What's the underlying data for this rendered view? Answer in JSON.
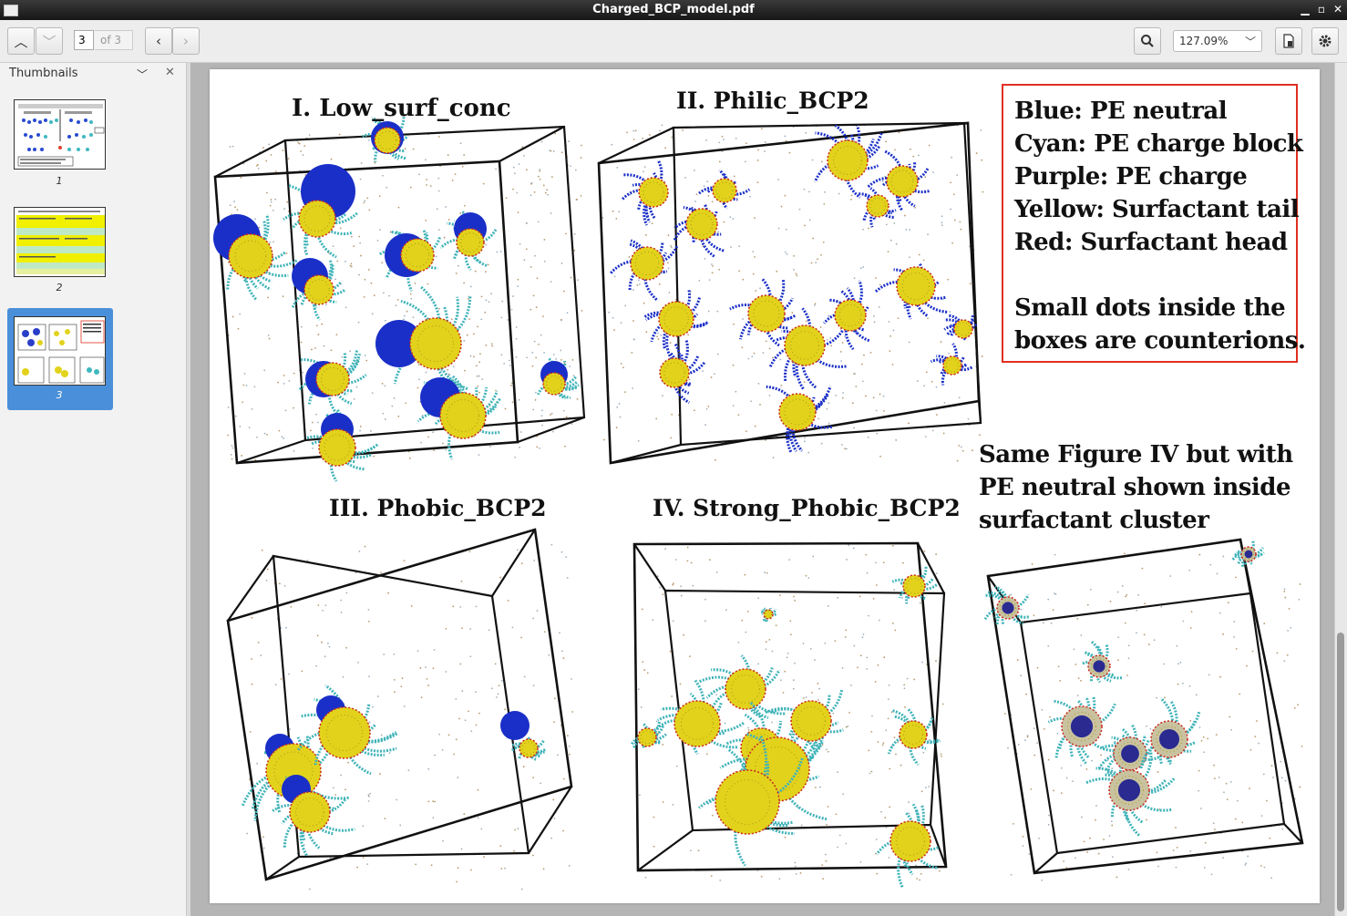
{
  "window": {
    "title": "Charged_BCP_model.pdf"
  },
  "toolbar": {
    "page_current": "3",
    "page_of": "of 3",
    "zoom": "127.09%"
  },
  "sidebar": {
    "header": "Thumbnails",
    "thumbnails": [
      {
        "label": "1",
        "selected": false
      },
      {
        "label": "2",
        "selected": false
      },
      {
        "label": "3",
        "selected": true
      }
    ]
  },
  "document": {
    "panels": [
      {
        "title": "I. Low_surf_conc"
      },
      {
        "title": "II. Philic_BCP2"
      },
      {
        "title": "III. Phobic_BCP2"
      },
      {
        "title": "IV. Strong_Phobic_BCP2"
      }
    ],
    "legend": [
      "Blue: PE neutral",
      "Cyan: PE charge block",
      "Purple: PE charge",
      "Yellow: Surfactant tail",
      "Red: Surfactant head",
      "",
      "Small dots inside the",
      "boxes are counterions."
    ],
    "note": [
      "Same Figure IV but with",
      "PE neutral shown inside",
      "surfactant cluster"
    ]
  },
  "colors": {
    "pe_neutral": "#1a2fc8",
    "pe_charge_block": "#3fb3b8",
    "surfactant_tail": "#e2d21c",
    "surfactant_head": "#c8281e",
    "legend_border": "#e03020"
  }
}
